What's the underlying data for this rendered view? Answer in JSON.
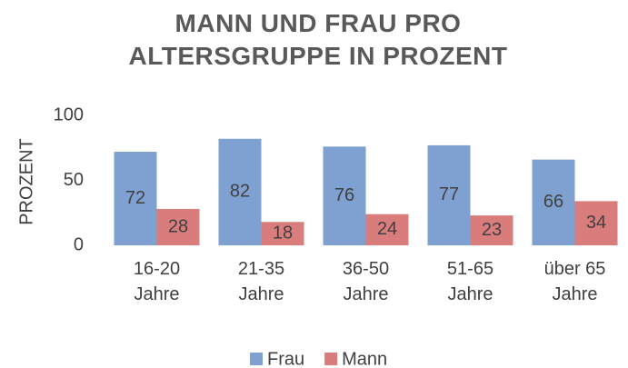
{
  "chart_data": {
    "type": "bar",
    "title": "MANN UND FRAU PRO ALTERSGRUPPE IN PROZENT",
    "y_label": "PROZENT",
    "categories": [
      "16-20 Jahre",
      "21-35 Jahre",
      "36-50 Jahre",
      "51-65 Jahre",
      "über 65 Jahre"
    ],
    "series": [
      {
        "name": "Frau",
        "color": "#7ea1d1",
        "values": [
          72,
          82,
          76,
          77,
          66
        ]
      },
      {
        "name": "Mann",
        "color": "#d97c7c",
        "values": [
          28,
          18,
          24,
          23,
          34
        ]
      }
    ],
    "ylim": [
      0,
      100
    ],
    "yticks": [
      0,
      50,
      100
    ],
    "grid": false,
    "legend": "bottom"
  }
}
